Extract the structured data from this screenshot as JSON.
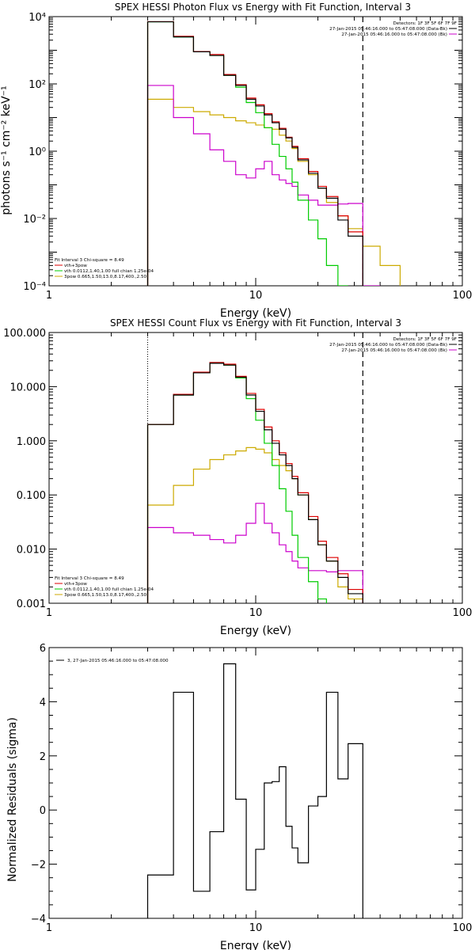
{
  "chart_data": [
    {
      "type": "line",
      "scale": "log-log",
      "title": "SPEX HESSI Photon Flux vs Energy with Fit Function, Interval 3",
      "xlabel": "Energy (keV)",
      "ylabel": "photons s⁻¹ cm⁻² keV⁻¹",
      "xlim": [
        1,
        100
      ],
      "ylim": [
        0.0001,
        10000
      ],
      "xticks": [
        1,
        10,
        100
      ],
      "xtick_labels": [
        "1",
        "10",
        "100"
      ],
      "yticks": [
        0.0001,
        0.01,
        1,
        100,
        10000
      ],
      "ytick_labels": [
        "10⁻⁴",
        "10⁻²",
        "10⁰",
        "10²",
        "10⁴"
      ],
      "legend_top": [
        "Detectors: 1F 3F 5F 6F 7F 9F",
        "27-Jan-2015 05:46:16.000 to 05:47:08.000 (Data-Bk)",
        "27-Jan-2015 05:46:16.000 to 05:47:08.000 (Bk)"
      ],
      "legend_bottom": [
        "Fit Interval 3   Chi-square = 8.49",
        "vth+3pow",
        "vth 0.0112,1.40,1.00  full chian 1.25e-04",
        "3pow 0.665,1.50,13.0,8.17,400.,2.50"
      ],
      "threshold_x": 33,
      "fit_start_x": 3.0,
      "bin_edges": [
        3.0,
        4.0,
        5.0,
        6.0,
        7.0,
        8.0,
        9.0,
        10.0,
        11.0,
        12.0,
        13.0,
        14.0,
        15.0,
        16.0,
        18.0,
        20.0,
        22.0,
        25.0,
        28.0,
        33.0,
        40.0,
        50.0
      ],
      "series": [
        {
          "name": "27-Jan-2015 05:46:16.000 to 05:47:08.000 (Data-Bk)",
          "color": "#000000",
          "values": [
            7000,
            2500,
            900,
            700,
            180,
            90,
            35,
            22,
            12,
            7,
            4.5,
            2.5,
            1.3,
            0.55,
            0.22,
            0.08,
            0.04,
            0.009,
            0.003
          ]
        },
        {
          "name": "27-Jan-2015 05:46:16.000 to 05:47:08.000 (Bk)",
          "color": "#cc00cc",
          "values": [
            90,
            10,
            3.3,
            1.1,
            0.5,
            0.2,
            0.16,
            0.3,
            0.5,
            0.2,
            0.14,
            0.11,
            0.09,
            0.05,
            0.035,
            0.025,
            0.025,
            0.027,
            0.028,
            0.0001
          ]
        },
        {
          "name": "vth+3pow",
          "color": "#dd0000",
          "values": [
            7100,
            2600,
            920,
            750,
            190,
            95,
            38,
            24,
            13,
            7.5,
            4.8,
            2.6,
            1.4,
            0.6,
            0.25,
            0.09,
            0.045,
            0.012,
            0.004
          ]
        },
        {
          "name": "vth",
          "color": "#00cc00",
          "values": [
            7000,
            2500,
            900,
            700,
            180,
            80,
            28,
            14,
            5,
            1.6,
            0.7,
            0.3,
            0.12,
            0.035,
            0.009,
            0.0025,
            0.0004,
            6e-05
          ]
        },
        {
          "name": "3pow",
          "color": "#ccaa00",
          "values": [
            35,
            20,
            15,
            12,
            10,
            8,
            7,
            6,
            5,
            4.5,
            3,
            2,
            1.2,
            0.5,
            0.2,
            0.08,
            0.03,
            0.012,
            0.005,
            0.0015,
            0.0004
          ]
        }
      ]
    },
    {
      "type": "line",
      "scale": "log-log",
      "title": "SPEX HESSI Count Flux vs Energy with Fit Function, Interval 3",
      "xlabel": "Energy (keV)",
      "ylabel": "",
      "xlim": [
        1,
        100
      ],
      "ylim": [
        0.001,
        100
      ],
      "xticks": [
        1,
        10,
        100
      ],
      "xtick_labels": [
        "1",
        "10",
        "100"
      ],
      "yticks": [
        0.001,
        0.01,
        0.1,
        1,
        10,
        100
      ],
      "ytick_labels": [
        "0.001",
        "0.010",
        "0.100",
        "1.000",
        "10.000",
        "100.000"
      ],
      "legend_top": [
        "Detectors: 1F 3F 5F 6F 7F 9F",
        "27-Jan-2015 05:46:16.000 to 05:47:08.000 (Data-Bk)",
        "27-Jan-2015 05:46:16.000 to 05:47:08.000 (Bk)"
      ],
      "legend_bottom": [
        "Fit Interval 3   Chi-square = 8.49",
        "vth+3pow",
        "vth 0.0112,1.40,1.00  full chian 1.25e-04",
        "3pow 0.665,1.50,13.0,8.17,400.,2.50"
      ],
      "threshold_x": 33,
      "fit_start_x": 3.0,
      "bin_edges": [
        3.0,
        4.0,
        5.0,
        6.0,
        7.0,
        8.0,
        9.0,
        10.0,
        11.0,
        12.0,
        13.0,
        14.0,
        15.0,
        16.0,
        18.0,
        20.0,
        22.0,
        25.0,
        28.0,
        33.0
      ],
      "series": [
        {
          "name": "27-Jan-2015 05:46:16.000 to 05:47:08.000 (Data-Bk)",
          "color": "#000000",
          "values": [
            2.0,
            7.0,
            18.0,
            27.0,
            25.0,
            15.0,
            7.0,
            3.5,
            1.6,
            0.9,
            0.55,
            0.35,
            0.2,
            0.1,
            0.035,
            0.012,
            0.006,
            0.003,
            0.0015
          ]
        },
        {
          "name": "27-Jan-2015 05:46:16.000 to 05:47:08.000 (Bk)",
          "color": "#cc00cc",
          "values": [
            0.025,
            0.02,
            0.018,
            0.015,
            0.013,
            0.018,
            0.03,
            0.07,
            0.03,
            0.02,
            0.012,
            0.009,
            0.006,
            0.0045,
            0.004,
            0.004,
            0.0038,
            0.004,
            0.004
          ]
        },
        {
          "name": "vth+3pow",
          "color": "#dd0000",
          "values": [
            2.0,
            7.2,
            18.5,
            28.0,
            26.0,
            15.5,
            7.5,
            3.8,
            1.8,
            1.0,
            0.6,
            0.38,
            0.22,
            0.11,
            0.04,
            0.014,
            0.007,
            0.0035,
            0.0018
          ]
        },
        {
          "name": "vth",
          "color": "#00cc00",
          "values": [
            2.0,
            7.0,
            18.0,
            27.0,
            25.0,
            14.5,
            6.0,
            2.4,
            0.9,
            0.35,
            0.13,
            0.05,
            0.018,
            0.007,
            0.0025,
            0.0012
          ]
        },
        {
          "name": "3pow",
          "color": "#ccaa00",
          "values": [
            0.065,
            0.15,
            0.3,
            0.45,
            0.55,
            0.65,
            0.75,
            0.7,
            0.6,
            0.45,
            0.35,
            0.28,
            0.2,
            0.1,
            0.035,
            0.012,
            0.006,
            0.002,
            0.0012
          ]
        }
      ]
    },
    {
      "type": "line",
      "scale": "log-linear",
      "title": "",
      "xlabel": "Energy (keV)",
      "ylabel": "Normalized Residuals (sigma)",
      "xlim": [
        1,
        100
      ],
      "ylim": [
        -4,
        6
      ],
      "xticks": [
        1,
        10,
        100
      ],
      "xtick_labels": [
        "1",
        "10",
        "100"
      ],
      "yticks": [
        -4,
        -2,
        0,
        2,
        4,
        6
      ],
      "ytick_labels": [
        "−4",
        "−2",
        "0",
        "2",
        "4",
        "6"
      ],
      "legend": [
        "3, 27-Jan-2015 05:46:16.000 to 05:47:08.000"
      ],
      "bin_edges": [
        3.0,
        4.0,
        5.0,
        6.0,
        7.0,
        8.0,
        9.0,
        10.0,
        11.0,
        12.0,
        13.0,
        14.0,
        15.0,
        16.0,
        18.0,
        20.0,
        22.0,
        25.0,
        28.0,
        33.0
      ],
      "series": [
        {
          "name": "3, 27-Jan-2015 05:46:16.000 to 05:47:08.000",
          "color": "#000000",
          "values": [
            -2.4,
            4.35,
            -3.0,
            -0.8,
            5.4,
            0.4,
            -2.95,
            -1.45,
            1.0,
            1.05,
            1.6,
            -0.6,
            -1.4,
            -1.95,
            0.15,
            0.5,
            4.35,
            1.15,
            2.45
          ]
        }
      ]
    }
  ]
}
